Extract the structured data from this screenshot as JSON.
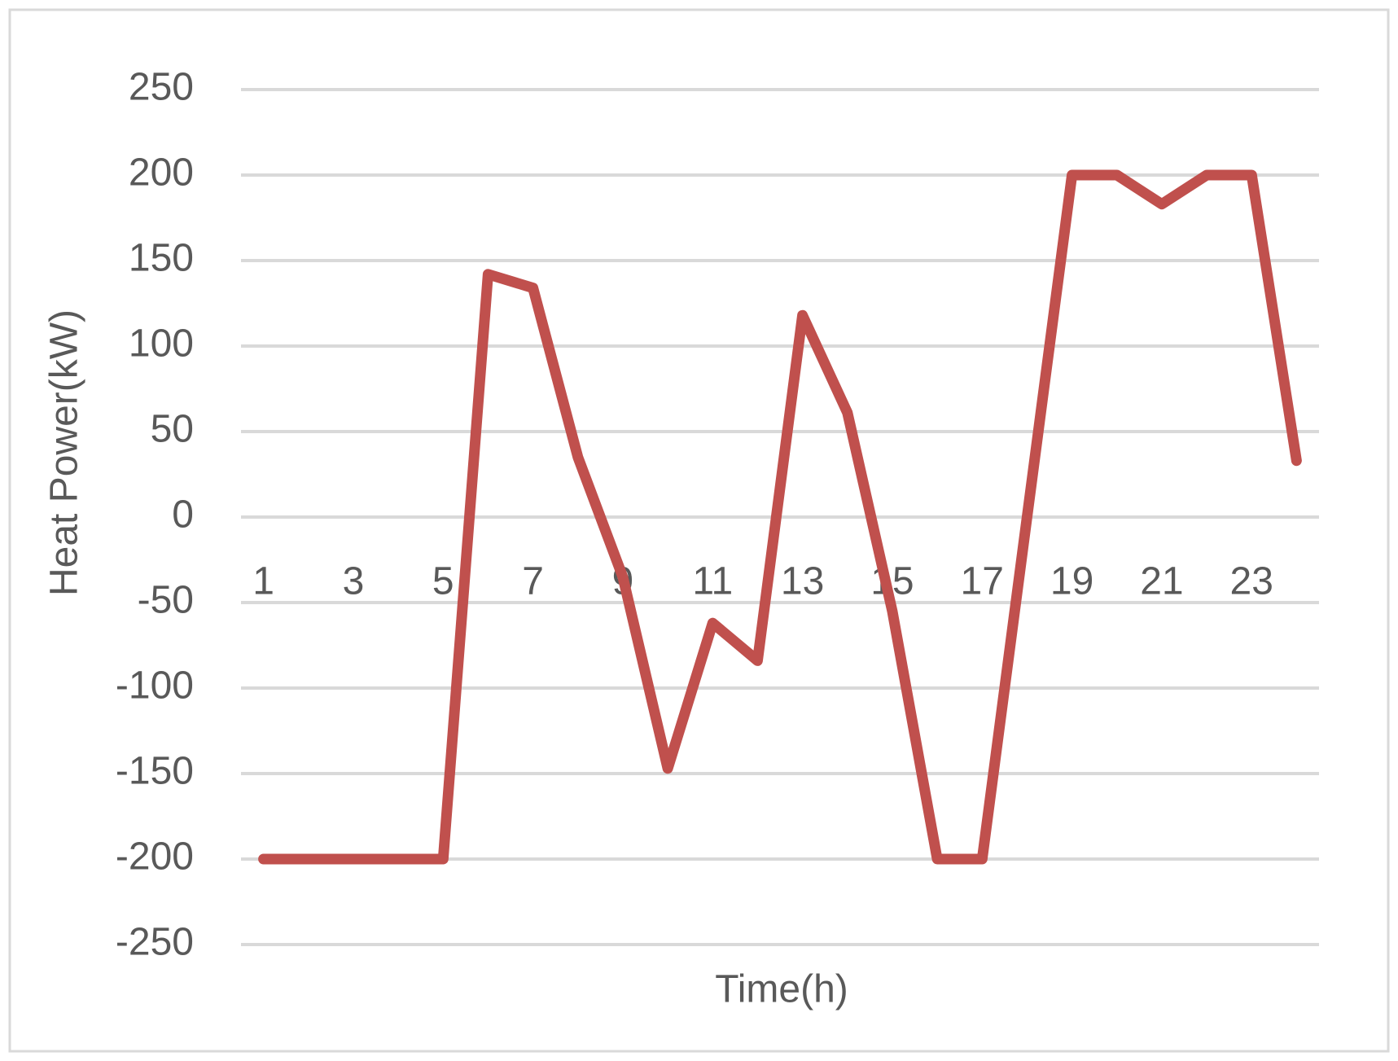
{
  "chart_data": {
    "type": "line",
    "x_label": "Time(h)",
    "y_label": "Heat Power(kW)",
    "categories": [
      1,
      null,
      3,
      null,
      5,
      null,
      7,
      null,
      9,
      null,
      11,
      null,
      13,
      null,
      15,
      null,
      17,
      null,
      19,
      null,
      21,
      null,
      23,
      null
    ],
    "values": [
      -200,
      -200,
      -200,
      -200,
      -200,
      142,
      134,
      35,
      -35,
      -147,
      -62,
      -84,
      118,
      61,
      -55,
      -200,
      -200,
      0,
      200,
      200,
      183,
      200,
      200,
      33
    ],
    "color": "#c0504d",
    "ylim": [
      -250,
      250
    ],
    "yticks": [
      -250,
      -200,
      -150,
      -100,
      -50,
      0,
      50,
      100,
      150,
      200,
      250
    ],
    "grid": true
  }
}
